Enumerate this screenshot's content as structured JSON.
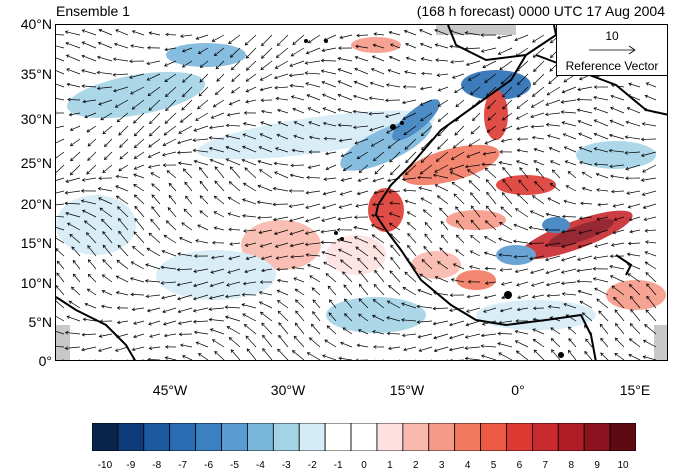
{
  "header": {
    "left_title": "Ensemble 1",
    "right_title": "(168 h forecast) 0000 UTC 17 Aug 2004"
  },
  "map": {
    "lat_labels": [
      "40°N",
      "35°N",
      "30°N",
      "25°N",
      "20°N",
      "15°N",
      "10°N",
      "5°N",
      "0°"
    ],
    "lon_labels": [
      "45°W",
      "30°W",
      "15°W",
      "0°",
      "15°E"
    ],
    "land_color": "#ffffff",
    "coast_color": "#000000",
    "missing_color": "#c8c8c8"
  },
  "reference_vector": {
    "magnitude": "10",
    "label": "Reference Vector"
  },
  "colorbar": {
    "labels": [
      "-10",
      "-9",
      "-8",
      "-7",
      "-6",
      "-5",
      "-4",
      "-3",
      "-2",
      "-1",
      "0",
      "1",
      "2",
      "3",
      "4",
      "5",
      "6",
      "7",
      "8",
      "9",
      "10"
    ],
    "colors": [
      "#08244a",
      "#0d3a78",
      "#1c5aa0",
      "#2a6db3",
      "#3b80c0",
      "#5a9bd0",
      "#7bb6dc",
      "#a4d3e6",
      "#d4ecf6",
      "#ffffff",
      "#ffffff",
      "#fde0df",
      "#f9b9ae",
      "#f69a88",
      "#f27a61",
      "#ec5a44",
      "#dd3a33",
      "#c82a2e",
      "#b01d27",
      "#8c1220",
      "#5e0a12"
    ]
  }
}
